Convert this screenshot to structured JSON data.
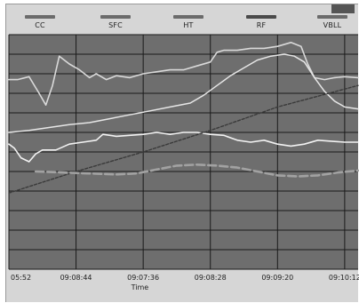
{
  "chart_data": {
    "type": "line",
    "title": "",
    "xlabel": "Time",
    "ylabel": "",
    "x_ticks": [
      "05:52",
      "09:08:44",
      "09:07:36",
      "09:08:28",
      "09:09:20",
      "09:10:12"
    ],
    "xlim": [
      0,
      5.2
    ],
    "ylim": [
      0,
      12
    ],
    "grid": true,
    "legend_position": "top",
    "plot_background": "#6e6e6e",
    "grid_color": "#1a1a1a",
    "series": [
      {
        "name": "CC",
        "color": "#d9d9d9",
        "width": 1.6,
        "dash": "",
        "x": [
          0,
          0.13,
          0.3,
          0.45,
          0.55,
          0.65,
          0.75,
          0.9,
          1.05,
          1.2,
          1.3,
          1.45,
          1.6,
          1.8,
          2.0,
          2.2,
          2.4,
          2.6,
          2.8,
          3.0,
          3.1,
          3.2,
          3.4,
          3.6,
          3.8,
          4.0,
          4.2,
          4.35,
          4.45,
          4.55,
          4.7,
          4.85,
          5.0,
          5.2
        ],
        "y": [
          9.7,
          9.7,
          9.85,
          9.0,
          8.4,
          9.4,
          10.9,
          10.5,
          10.2,
          9.8,
          10.0,
          9.7,
          9.9,
          9.8,
          10.0,
          10.1,
          10.2,
          10.2,
          10.4,
          10.6,
          11.1,
          11.2,
          11.2,
          11.3,
          11.3,
          11.4,
          11.6,
          11.4,
          10.5,
          9.8,
          9.7,
          9.8,
          9.85,
          9.8
        ]
      },
      {
        "name": "SFC",
        "color": "#e6e6e6",
        "width": 1.5,
        "dash": "",
        "x": [
          0,
          0.3,
          0.6,
          0.9,
          1.2,
          1.5,
          1.8,
          2.1,
          2.4,
          2.7,
          2.9,
          3.1,
          3.3,
          3.5,
          3.7,
          3.9,
          4.1,
          4.25,
          4.4,
          4.55,
          4.7,
          4.85,
          5.0,
          5.2
        ],
        "y": [
          7.0,
          7.1,
          7.25,
          7.4,
          7.5,
          7.7,
          7.9,
          8.1,
          8.3,
          8.5,
          8.9,
          9.4,
          9.9,
          10.3,
          10.7,
          10.9,
          11.0,
          10.9,
          10.6,
          9.8,
          9.1,
          8.6,
          8.3,
          8.2
        ]
      },
      {
        "name": "HT",
        "color": "#f2f2f2",
        "width": 1.6,
        "dash": "",
        "x": [
          0,
          0.08,
          0.18,
          0.3,
          0.4,
          0.5,
          0.7,
          0.9,
          1.1,
          1.3,
          1.4,
          1.6,
          1.8,
          2.0,
          2.2,
          2.4,
          2.6,
          2.8,
          3.0,
          3.2,
          3.4,
          3.6,
          3.8,
          4.0,
          4.2,
          4.4,
          4.6,
          4.8,
          5.0,
          5.2
        ],
        "y": [
          6.4,
          6.2,
          5.7,
          5.5,
          5.9,
          6.1,
          6.1,
          6.4,
          6.5,
          6.6,
          6.9,
          6.8,
          6.85,
          6.9,
          7.0,
          6.9,
          7.0,
          7.0,
          6.9,
          6.85,
          6.6,
          6.5,
          6.6,
          6.4,
          6.3,
          6.4,
          6.6,
          6.55,
          6.5,
          6.5
        ]
      },
      {
        "name": "RF",
        "color": "#3a3a3a",
        "width": 1.4,
        "dash": "3,2",
        "x": [
          0,
          1.0,
          2.0,
          3.0,
          4.0,
          5.2
        ],
        "y": [
          3.9,
          5.0,
          6.0,
          7.1,
          8.3,
          9.4
        ]
      },
      {
        "name": "VBLL",
        "color": "#a2a2a2",
        "width": 2.6,
        "dash": "9,4",
        "x": [
          0.4,
          0.8,
          1.2,
          1.6,
          1.9,
          2.2,
          2.5,
          2.8,
          3.1,
          3.4,
          3.7,
          4.0,
          4.3,
          4.6,
          4.9,
          5.2
        ],
        "y": [
          5.0,
          4.95,
          4.9,
          4.85,
          4.9,
          5.1,
          5.3,
          5.35,
          5.3,
          5.2,
          5.0,
          4.8,
          4.75,
          4.8,
          4.95,
          5.05
        ]
      }
    ]
  }
}
